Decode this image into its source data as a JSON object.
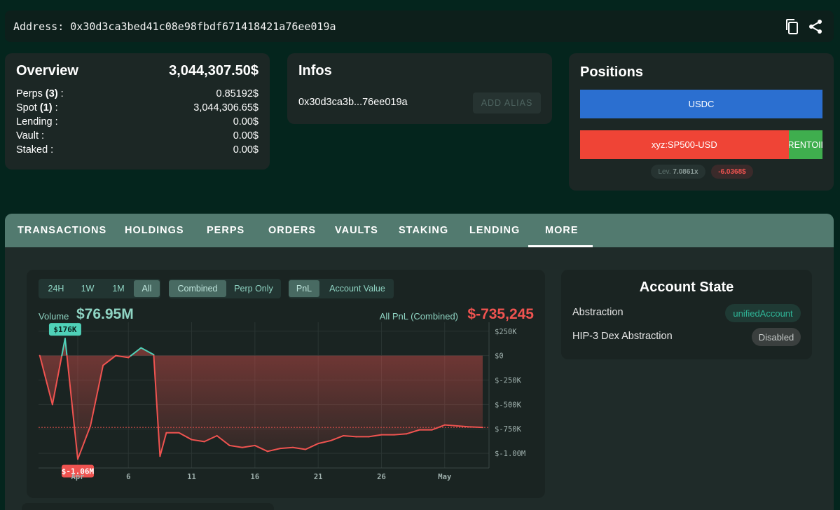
{
  "address_bar": {
    "text": "Address: 0x30d3ca3bed41c08e98fbdf671418421a76ee019a",
    "icons": [
      "copy-icon",
      "share-icon"
    ]
  },
  "overview": {
    "title": "Overview",
    "total": "3,044,307.50$",
    "rows": [
      {
        "label": "Perps",
        "count": "(3)",
        "suffix": " :",
        "value": "0.85192$"
      },
      {
        "label": "Spot",
        "count": "(1)",
        "suffix": " :",
        "value": "3,044,306.65$"
      },
      {
        "label": "Lending :",
        "count": "",
        "suffix": "",
        "value": "0.00$"
      },
      {
        "label": "Vault :",
        "count": "",
        "suffix": "",
        "value": "0.00$"
      },
      {
        "label": "Staked :",
        "count": "",
        "suffix": "",
        "value": "0.00$"
      }
    ]
  },
  "infos": {
    "title": "Infos",
    "short_address": "0x30d3ca3b...76ee019a",
    "add_alias_label": "ADD ALIAS"
  },
  "positions": {
    "title": "Positions",
    "usdc_label": "USDC",
    "perp_label": "xyz:SP500-USD",
    "perp_side_label": "RENTOII",
    "perp_share": 0.86,
    "lev_label": "Lev.",
    "lev_value": "7.0861x",
    "pnl_value": "-6.0368$"
  },
  "tabs": [
    "TRANSACTIONS",
    "HOLDINGS",
    "PERPS",
    "ORDERS",
    "VAULTS",
    "STAKING",
    "LENDING",
    "MORE"
  ],
  "active_tab": "MORE",
  "chart_controls": {
    "ranges": [
      "24H",
      "1W",
      "1M",
      "All"
    ],
    "active_range": "All",
    "modes": [
      "Combined",
      "Perp Only"
    ],
    "active_mode": "Combined",
    "metrics": [
      "PnL",
      "Account Value"
    ],
    "active_metric": "PnL"
  },
  "volume": {
    "label": "Volume",
    "value": "$76.95M"
  },
  "all_pnl": {
    "label": "All PnL (Combined)",
    "value": "$-735,245"
  },
  "chart_data": {
    "type": "area",
    "title": "",
    "xlabel": "",
    "ylabel": "",
    "ylim": [
      -1150000,
      270000
    ],
    "yticks": [
      250000,
      0,
      -250000,
      -500000,
      -750000,
      -1000000
    ],
    "ytick_labels": [
      "$250K",
      "$0",
      "$-250K",
      "$-500K",
      "$-750K",
      "$-1.00M"
    ],
    "xticks": [
      {
        "day": 2,
        "label": "Apr"
      },
      {
        "day": 6,
        "label": "6"
      },
      {
        "day": 11,
        "label": "11"
      },
      {
        "day": 16,
        "label": "16"
      },
      {
        "day": 21,
        "label": "21"
      },
      {
        "day": 26,
        "label": "26"
      },
      {
        "day": 31,
        "label": "May"
      }
    ],
    "x_range_days": [
      -1.1,
      34.5
    ],
    "x": [
      -1,
      0,
      1,
      2,
      3,
      4,
      5,
      6,
      7,
      8,
      8.5,
      9,
      10,
      11,
      12,
      13,
      14,
      15,
      16,
      17,
      18,
      19,
      20,
      21,
      22,
      23,
      24,
      25,
      26,
      27,
      28,
      29,
      30,
      31,
      32,
      33,
      34
    ],
    "values": [
      0,
      -500000,
      176000,
      -1060000,
      -720000,
      -100000,
      0,
      -20000,
      80000,
      10000,
      -1030000,
      -790000,
      -790000,
      -860000,
      -880000,
      -820000,
      -920000,
      -940000,
      -920000,
      -980000,
      -950000,
      -940000,
      -960000,
      -900000,
      -870000,
      -820000,
      -830000,
      -830000,
      -810000,
      -810000,
      -800000,
      -760000,
      -760000,
      -710000,
      -720000,
      -730000,
      -735245
    ],
    "max_label": "$176K",
    "min_label": "$-1.06M",
    "reference_line": -735245,
    "grid": true,
    "series_colors": {
      "positive": "#4fd1b8",
      "negative": "#ef5350"
    }
  },
  "account_state": {
    "title": "Account State",
    "rows": [
      {
        "label": "Abstraction",
        "value": "unifiedAccount"
      },
      {
        "label": "HIP-3 Dex Abstraction",
        "value": "Disabled"
      }
    ]
  },
  "colors": {
    "accent": "#4fd1b8",
    "negative": "#ef5350",
    "usdc_blue": "#2b6fd0",
    "positive_green": "#3fae4e",
    "tab_bar": "#527a6f"
  }
}
